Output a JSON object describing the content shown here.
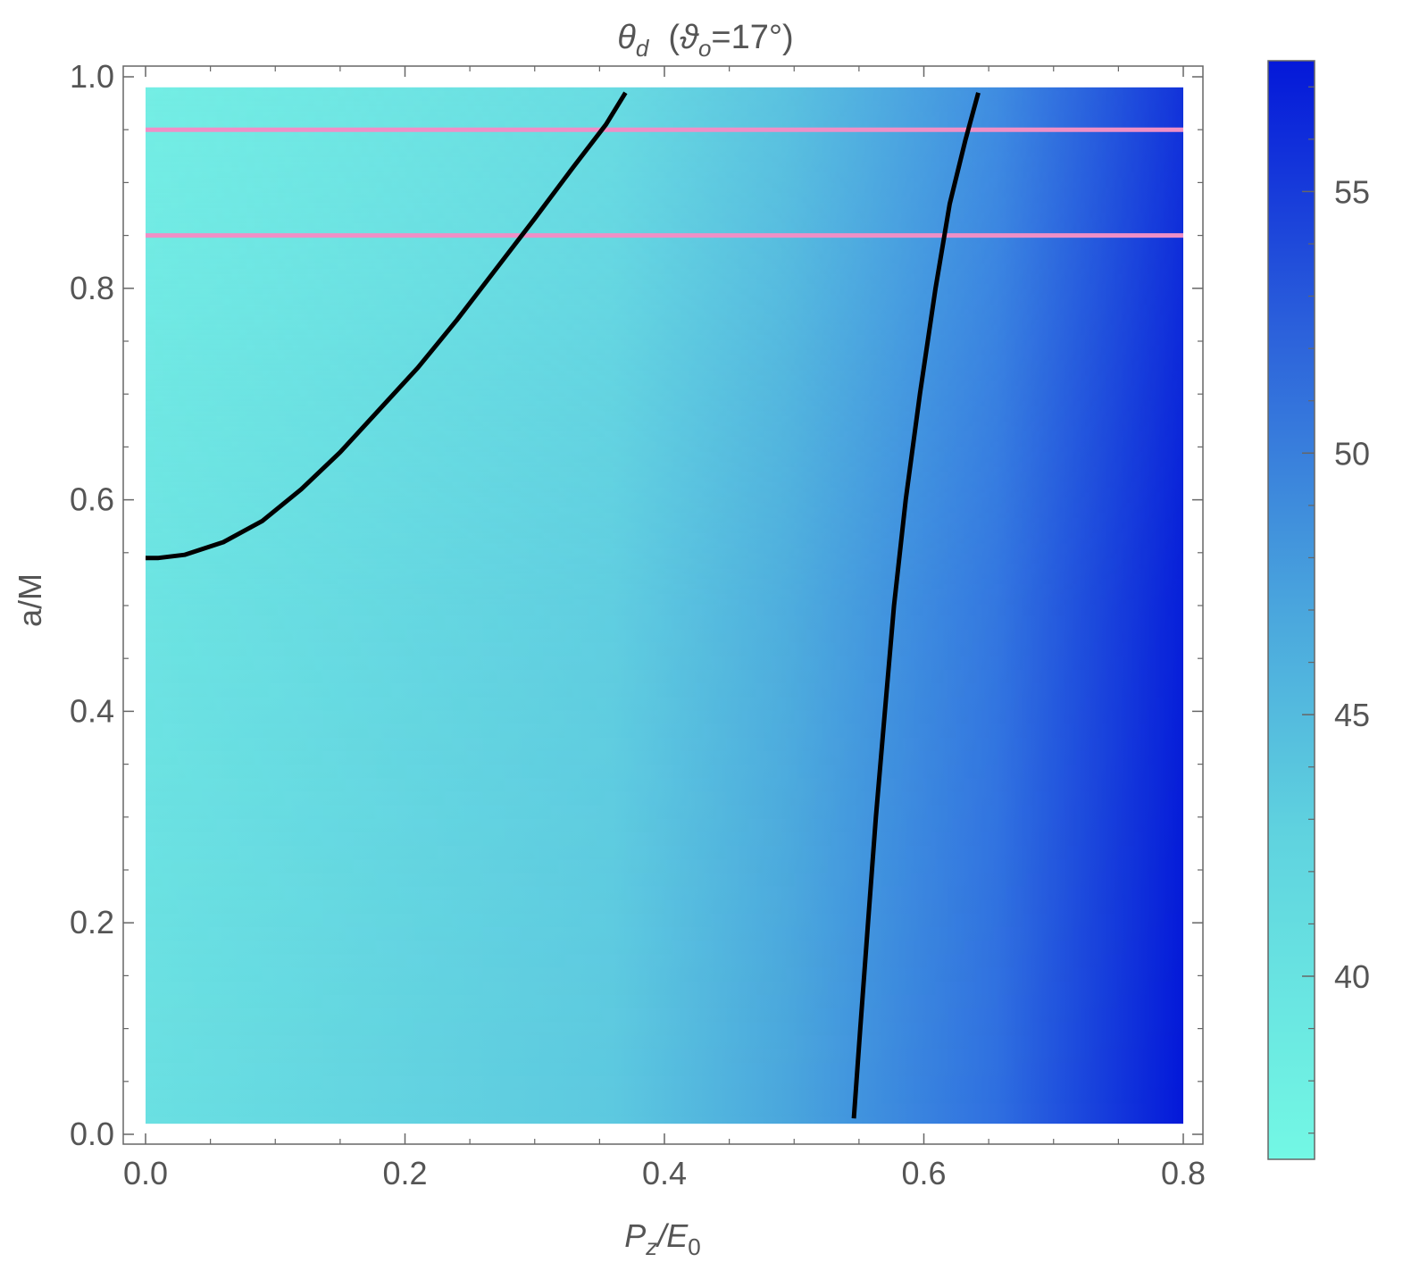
{
  "chart_data": {
    "type": "heatmap",
    "title": {
      "symbol": "θ",
      "symbol_sub": "d",
      "paren_open": "(",
      "param": "ϑ",
      "param_sub": "o",
      "param_value": "=17°)"
    },
    "xlabel": {
      "p": "P",
      "p_sub": "z",
      "slash": "/E",
      "e_sub": "0"
    },
    "ylabel": "a/M",
    "xlim": [
      0.0,
      0.8
    ],
    "ylim": [
      0.0,
      1.0
    ],
    "x_ticks": [
      "0.0",
      "0.2",
      "0.4",
      "0.6",
      "0.8"
    ],
    "y_ticks": [
      "0.0",
      "0.2",
      "0.4",
      "0.6",
      "0.8",
      "1.0"
    ],
    "data_extent": {
      "x": [
        0.0,
        0.8
      ],
      "y": [
        0.01,
        0.99
      ]
    },
    "colorbar": {
      "range": [
        36.5,
        57.5
      ],
      "ticks": [
        "40",
        "45",
        "50",
        "55"
      ],
      "low_color": "#73f8e4",
      "mid_color": "#4aa6dd",
      "high_color": "#0418d9"
    },
    "contours": [
      {
        "color": "#000000",
        "points": [
          [
            0.0,
            0.545
          ],
          [
            0.01,
            0.545
          ],
          [
            0.03,
            0.548
          ],
          [
            0.06,
            0.56
          ],
          [
            0.09,
            0.58
          ],
          [
            0.12,
            0.61
          ],
          [
            0.15,
            0.645
          ],
          [
            0.18,
            0.685
          ],
          [
            0.21,
            0.725
          ],
          [
            0.24,
            0.77
          ],
          [
            0.27,
            0.818
          ],
          [
            0.3,
            0.866
          ],
          [
            0.33,
            0.915
          ],
          [
            0.355,
            0.955
          ],
          [
            0.37,
            0.985
          ]
        ]
      },
      {
        "color": "#000000",
        "points": [
          [
            0.546,
            0.015
          ],
          [
            0.551,
            0.1
          ],
          [
            0.557,
            0.2
          ],
          [
            0.563,
            0.3
          ],
          [
            0.57,
            0.4
          ],
          [
            0.577,
            0.5
          ],
          [
            0.586,
            0.6
          ],
          [
            0.597,
            0.7
          ],
          [
            0.609,
            0.8
          ],
          [
            0.62,
            0.88
          ],
          [
            0.632,
            0.94
          ],
          [
            0.642,
            0.985
          ]
        ]
      }
    ],
    "reference_lines": [
      {
        "y": 0.95,
        "color": "#ef8fc6"
      },
      {
        "y": 0.85,
        "color": "#ef8fc6"
      }
    ]
  }
}
